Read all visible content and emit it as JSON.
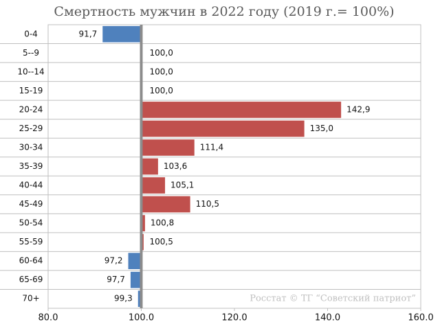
{
  "chart_data": {
    "type": "hbar",
    "title": "Смертность мужчин в 2022 году (2019 г.= 100%)",
    "annotation": "Росстат © ТГ “Советский патриот”",
    "categories": [
      "0-4",
      "5--9",
      "10--14",
      "15-19",
      "20-24",
      "25-29",
      "30-34",
      "35-39",
      "40-44",
      "45-49",
      "50-54",
      "55-59",
      "60-64",
      "65-69",
      "70+"
    ],
    "values": [
      91.7,
      100.0,
      100.0,
      100.0,
      142.9,
      135.0,
      111.4,
      103.6,
      105.1,
      110.5,
      100.8,
      100.5,
      97.2,
      97.7,
      99.3
    ],
    "value_labels": [
      "91,7",
      "100,0",
      "100,0",
      "100,0",
      "142,9",
      "135,0",
      "111,4",
      "103,6",
      "105,1",
      "110,5",
      "100,8",
      "100,5",
      "97,2",
      "97,7",
      "99,3"
    ],
    "baseline": 100,
    "color_above": "#c0504d",
    "color_below": "#4f81bd",
    "xlim": [
      80,
      160
    ],
    "xticks": [
      {
        "value": 80,
        "label": "80.0"
      },
      {
        "value": 100,
        "label": "100.0"
      },
      {
        "value": 120,
        "label": "120.0"
      },
      {
        "value": 140,
        "label": "140.0"
      },
      {
        "value": 160,
        "label": "160.0"
      }
    ]
  }
}
